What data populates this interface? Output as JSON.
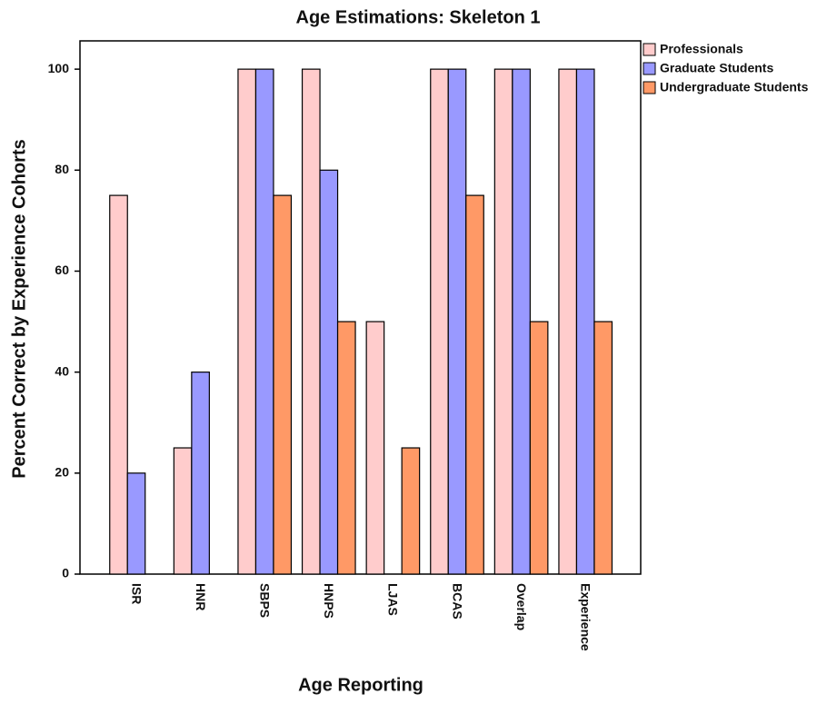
{
  "chart_data": {
    "type": "bar",
    "title": "Age Estimations: Skeleton 1",
    "x_label": "Age Reporting",
    "y_label": "Percent Correct by Experience Cohorts",
    "categories": [
      "ISR",
      "HNR",
      "SBPS",
      "HNPS",
      "LJAS",
      "BCAS",
      "Overlap",
      "Experience"
    ],
    "series": [
      {
        "name": "Professionals",
        "color": "#ffcccc",
        "values": [
          75,
          25,
          100,
          100,
          50,
          100,
          100,
          100
        ]
      },
      {
        "name": "Graduate Students",
        "color": "#9999ff",
        "values": [
          20,
          40,
          100,
          80,
          0,
          100,
          100,
          100
        ]
      },
      {
        "name": "Undergraduate Students",
        "color": "#ff9966",
        "values": [
          0,
          0,
          75,
          50,
          25,
          75,
          50,
          50
        ]
      }
    ],
    "ylim": [
      0,
      105.6
    ],
    "yticks": [
      0,
      20,
      40,
      60,
      80,
      100
    ],
    "grid": false,
    "legend": "outside-top-right"
  }
}
